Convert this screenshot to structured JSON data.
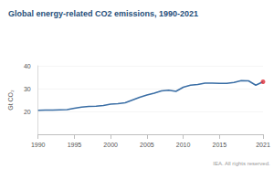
{
  "chart_data": {
    "type": "line",
    "title": "Global energy-related CO2 emissions, 1990-2021",
    "y_label": "Gt CO₂",
    "annotations": [
      "IEA. All rights reserved."
    ],
    "x": [
      1990,
      1991,
      1992,
      1993,
      1994,
      1995,
      1996,
      1997,
      1998,
      1999,
      2000,
      2001,
      2002,
      2003,
      2004,
      2005,
      2006,
      2007,
      2008,
      2009,
      2010,
      2011,
      2012,
      2013,
      2014,
      2015,
      2016,
      2017,
      2018,
      2019,
      2020,
      2021
    ],
    "series": [
      {
        "type": "line",
        "color": "#3a6ea5",
        "values": [
          20.5,
          20.6,
          20.6,
          20.7,
          20.8,
          21.4,
          21.9,
          22.2,
          22.3,
          22.6,
          23.2,
          23.4,
          23.8,
          25.0,
          26.2,
          27.2,
          28.0,
          29.0,
          29.3,
          28.8,
          30.6,
          31.5,
          31.8,
          32.4,
          32.4,
          32.3,
          32.3,
          32.7,
          33.5,
          33.4,
          31.5,
          33.0
        ]
      },
      {
        "type": "scatter",
        "color": "#e0303a",
        "marker": "circle",
        "values": [
          null,
          null,
          null,
          null,
          null,
          null,
          null,
          null,
          null,
          null,
          null,
          null,
          null,
          null,
          null,
          null,
          null,
          null,
          null,
          null,
          null,
          null,
          null,
          null,
          null,
          null,
          null,
          null,
          null,
          null,
          null,
          33.0
        ]
      }
    ],
    "xlim": [
      1990,
      2021
    ],
    "xticks": [
      1990,
      1995,
      2000,
      2005,
      2010,
      2015,
      2021
    ],
    "ylim": [
      10,
      40
    ],
    "yticks": [
      20,
      30,
      40
    ],
    "grid": true
  }
}
